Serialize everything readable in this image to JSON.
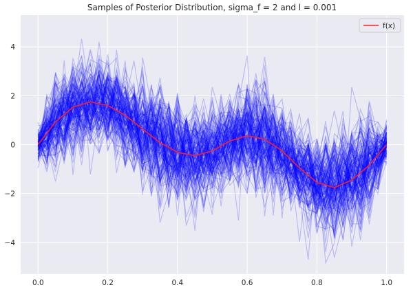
{
  "chart_data": {
    "type": "line",
    "title": "Samples of Posterior Distribution, sigma_f = 2 and l = 0.001",
    "xlabel": "",
    "ylabel": "",
    "xlim": [
      -0.05,
      1.05
    ],
    "ylim": [
      -5.3,
      5.3
    ],
    "x_ticks": [
      "0.0",
      "0.2",
      "0.4",
      "0.6",
      "0.8",
      "1.0"
    ],
    "x_tick_values": [
      0.0,
      0.2,
      0.4,
      0.6,
      0.8,
      1.0
    ],
    "y_ticks": [
      "−4",
      "−2",
      "0",
      "2",
      "4"
    ],
    "y_tick_values": [
      -4,
      -2,
      0,
      2,
      4
    ],
    "grid": true,
    "legend_position": "top-right",
    "background_color": "#EAEAF2",
    "grid_color": "#FFFFFF",
    "series": [
      {
        "name": "f(x)",
        "color": "#FF2020",
        "x": [
          0.0,
          0.05,
          0.1,
          0.15,
          0.2,
          0.25,
          0.3,
          0.35,
          0.4,
          0.45,
          0.5,
          0.55,
          0.6,
          0.65,
          0.7,
          0.75,
          0.8,
          0.85,
          0.9,
          0.95,
          1.0
        ],
        "values": [
          0.0,
          0.93,
          1.53,
          1.75,
          1.6,
          1.2,
          0.64,
          0.08,
          -0.32,
          -0.45,
          -0.26,
          0.15,
          0.36,
          0.22,
          -0.25,
          -0.95,
          -1.55,
          -1.76,
          -1.45,
          -0.85,
          0.0
        ]
      }
    ],
    "samples": {
      "count": 150,
      "color": "#0000FF",
      "description_hidden": true,
      "mean_source": "f(x)",
      "band_halfwidth": [
        0.55,
        1.6,
        1.5,
        1.45,
        1.45,
        1.3,
        1.7,
        1.8,
        1.7,
        1.6,
        1.45,
        1.3,
        1.6,
        1.75,
        1.6,
        1.25,
        1.5,
        1.8,
        1.75,
        1.6,
        0.7
      ]
    }
  }
}
